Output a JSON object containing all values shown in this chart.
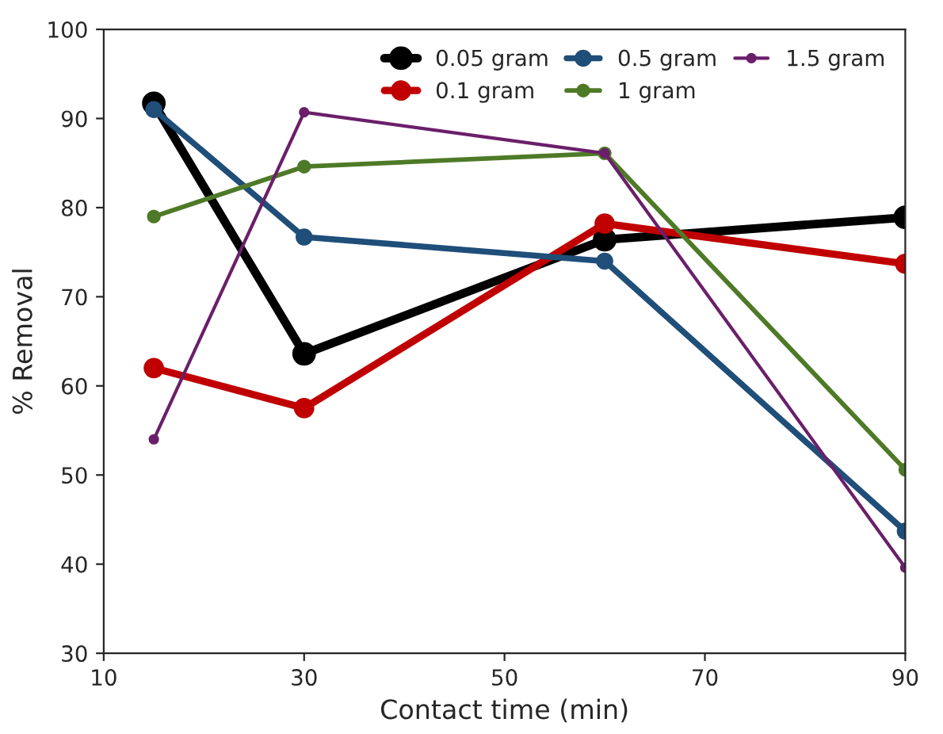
{
  "chart_data": {
    "type": "line",
    "xlabel": "Contact time (min)",
    "ylabel": "% Removal",
    "x": [
      15,
      30,
      60,
      90
    ],
    "series": [
      {
        "name": "0.05 gram",
        "color": "#000000",
        "values": [
          91.7,
          63.6,
          76.4,
          78.9
        ]
      },
      {
        "name": "0.1 gram",
        "color": "#c00000",
        "values": [
          62,
          57.5,
          78.2,
          73.7
        ]
      },
      {
        "name": "0.5 gram",
        "color": "#1f4e79",
        "values": [
          91,
          76.7,
          74,
          43.7
        ]
      },
      {
        "name": "1 gram",
        "color": "#4e7a27",
        "values": [
          79,
          84.6,
          86.1,
          50.6
        ]
      },
      {
        "name": "1.5 gram",
        "color": "#6a1f6a",
        "values": [
          54,
          90.7,
          86.1,
          39.6
        ]
      }
    ],
    "xlim": [
      10,
      90
    ],
    "xticks": [
      10,
      30,
      50,
      70,
      90
    ],
    "ylim": [
      30,
      100
    ],
    "yticks": [
      30,
      40,
      50,
      60,
      70,
      80,
      90,
      100
    ],
    "legend": "top right",
    "grid": false,
    "marker": "circle",
    "line_style": "solid"
  }
}
